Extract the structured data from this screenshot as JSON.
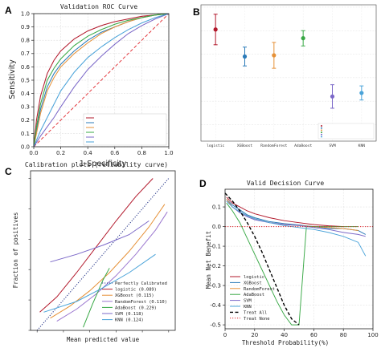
{
  "figure": {
    "panel_labels": [
      "A",
      "B",
      "C",
      "D"
    ]
  },
  "chart_data": [
    {
      "panel": "A",
      "type": "line",
      "title": "Validation ROC Curve",
      "xlabel": "1-Specificity",
      "ylabel": "Sensitivity",
      "xlim": [
        0,
        1
      ],
      "ylim": [
        0,
        1
      ],
      "xticks": [
        "0.0",
        "0.2",
        "0.4",
        "0.6",
        "0.8",
        "1.0"
      ],
      "yticks": [
        "0.0",
        "0.1",
        "0.2",
        "0.3",
        "0.4",
        "0.5",
        "0.6",
        "0.7",
        "0.8",
        "0.9",
        "1.0"
      ],
      "grid": true,
      "legend_position": "bottom-right",
      "reference": {
        "x": [
          0,
          1
        ],
        "y": [
          0,
          1
        ],
        "color": "#e0252b",
        "style": "dashed"
      },
      "series": [
        {
          "color": "#b2182b",
          "x": [
            0,
            0.02,
            0.05,
            0.1,
            0.15,
            0.2,
            0.3,
            0.4,
            0.5,
            0.6,
            0.7,
            0.8,
            0.9,
            1.0
          ],
          "y": [
            0,
            0.2,
            0.38,
            0.55,
            0.65,
            0.72,
            0.81,
            0.87,
            0.91,
            0.94,
            0.96,
            0.98,
            0.99,
            1.0
          ]
        },
        {
          "color": "#2b7bb9",
          "x": [
            0,
            0.02,
            0.05,
            0.1,
            0.15,
            0.2,
            0.3,
            0.4,
            0.5,
            0.6,
            0.7,
            0.8,
            0.9,
            1.0
          ],
          "y": [
            0,
            0.12,
            0.28,
            0.45,
            0.55,
            0.62,
            0.72,
            0.8,
            0.86,
            0.9,
            0.94,
            0.97,
            0.99,
            1.0
          ]
        },
        {
          "color": "#e69138",
          "x": [
            0,
            0.02,
            0.05,
            0.1,
            0.15,
            0.2,
            0.3,
            0.4,
            0.5,
            0.6,
            0.7,
            0.8,
            0.9,
            1.0
          ],
          "y": [
            0,
            0.1,
            0.25,
            0.42,
            0.52,
            0.6,
            0.7,
            0.78,
            0.85,
            0.9,
            0.94,
            0.97,
            0.99,
            1.0
          ]
        },
        {
          "color": "#38a845",
          "x": [
            0,
            0.02,
            0.05,
            0.1,
            0.15,
            0.2,
            0.3,
            0.4,
            0.5,
            0.6,
            0.7,
            0.8,
            0.9,
            1.0
          ],
          "y": [
            0,
            0.15,
            0.32,
            0.5,
            0.59,
            0.66,
            0.76,
            0.83,
            0.88,
            0.92,
            0.95,
            0.97,
            0.99,
            1.0
          ]
        },
        {
          "color": "#7b68c8",
          "x": [
            0,
            0.05,
            0.1,
            0.15,
            0.2,
            0.3,
            0.4,
            0.5,
            0.6,
            0.7,
            0.8,
            0.9,
            1.0
          ],
          "y": [
            0,
            0.08,
            0.15,
            0.22,
            0.3,
            0.45,
            0.58,
            0.68,
            0.77,
            0.85,
            0.91,
            0.96,
            1.0
          ]
        },
        {
          "color": "#4aa3d9",
          "x": [
            0,
            0.05,
            0.1,
            0.15,
            0.2,
            0.3,
            0.4,
            0.5,
            0.6,
            0.7,
            0.8,
            0.9,
            1.0
          ],
          "y": [
            0,
            0.12,
            0.22,
            0.32,
            0.42,
            0.56,
            0.67,
            0.75,
            0.82,
            0.88,
            0.93,
            0.97,
            1.0
          ]
        }
      ]
    },
    {
      "panel": "B",
      "type": "scatter",
      "title": "",
      "categories": [
        "logistic",
        "XGBoost",
        "RandomForest",
        "AdaBoost",
        "SVM",
        "KNN"
      ],
      "ylim": [
        0.38,
        0.96
      ],
      "grid": true,
      "legend_position": "bottom-right",
      "points": [
        {
          "category": "logistic",
          "value": 0.855,
          "low": 0.79,
          "high": 0.92,
          "color": "#b2182b"
        },
        {
          "category": "XGBoost",
          "value": 0.74,
          "low": 0.7,
          "high": 0.78,
          "color": "#2b7bb9"
        },
        {
          "category": "RandomForest",
          "value": 0.745,
          "low": 0.69,
          "high": 0.8,
          "color": "#e69138"
        },
        {
          "category": "AdaBoost",
          "value": 0.818,
          "low": 0.785,
          "high": 0.85,
          "color": "#38a845"
        },
        {
          "category": "SVM",
          "value": 0.57,
          "low": 0.52,
          "high": 0.62,
          "color": "#7b68c8"
        },
        {
          "category": "KNN",
          "value": 0.585,
          "low": 0.555,
          "high": 0.615,
          "color": "#4aa3d9"
        }
      ]
    },
    {
      "panel": "C",
      "type": "line",
      "title": "Calibration plots  (reliability curve)",
      "xlabel": "Mean predicted value",
      "ylabel": "Fraction of positives",
      "xlim": [
        -0.05,
        1.05
      ],
      "ylim": [
        0,
        1.05
      ],
      "grid": false,
      "legend_position": "bottom-right",
      "reference": {
        "name": "Perfectly Calibrated",
        "x": [
          0,
          1
        ],
        "y": [
          0,
          1
        ],
        "color": "#2b3a8c",
        "style": "dotted"
      },
      "series": [
        {
          "name": "logistic (0.089)",
          "color": "#b2182b",
          "x": [
            0.02,
            0.15,
            0.3,
            0.45,
            0.6,
            0.75,
            0.88
          ],
          "y": [
            0.12,
            0.22,
            0.38,
            0.55,
            0.72,
            0.88,
            1.0
          ]
        },
        {
          "name": "XGBoost (0.115)",
          "color": "#e69138",
          "x": [
            0.1,
            0.25,
            0.4,
            0.55,
            0.7,
            0.85,
            0.97
          ],
          "y": [
            0.08,
            0.16,
            0.26,
            0.38,
            0.52,
            0.68,
            0.83
          ]
        },
        {
          "name": "RandomForest (0.110)",
          "color": "#9b77cf",
          "x": [
            0.15,
            0.3,
            0.45,
            0.6,
            0.75,
            0.9,
            0.99
          ],
          "y": [
            0.06,
            0.14,
            0.24,
            0.36,
            0.5,
            0.66,
            0.78
          ]
        },
        {
          "name": "AdaBoost (0.229)",
          "color": "#38a845",
          "x": [
            0.35,
            0.42,
            0.5,
            0.55
          ],
          "y": [
            0.02,
            0.17,
            0.33,
            0.41
          ]
        },
        {
          "name": "SVM (0.118)",
          "color": "#7b68c8",
          "x": [
            0.1,
            0.3,
            0.5,
            0.7,
            0.85
          ],
          "y": [
            0.45,
            0.5,
            0.56,
            0.63,
            0.72
          ]
        },
        {
          "name": "KNN (0.124)",
          "color": "#4aa3d9",
          "x": [
            0.05,
            0.3,
            0.5,
            0.7,
            0.9
          ],
          "y": [
            0.12,
            0.19,
            0.28,
            0.38,
            0.5
          ]
        }
      ]
    },
    {
      "panel": "D",
      "type": "line",
      "title": "Valid Decision Curve",
      "xlabel": "Threshold Probability(%)",
      "ylabel": "Mean Net Benefit",
      "xlim": [
        0,
        100
      ],
      "ylim": [
        -0.5,
        0.2
      ],
      "xticks": [
        "0",
        "20",
        "40",
        "60",
        "80",
        "100"
      ],
      "yticks": [
        "0.1",
        "0.0",
        "-0.1",
        "-0.2",
        "-0.3",
        "-0.4",
        "-0.5"
      ],
      "grid": true,
      "legend_position": "bottom-left",
      "series": [
        {
          "name": "logistic",
          "color": "#b2182b",
          "x": [
            1,
            5,
            10,
            15,
            20,
            30,
            40,
            50,
            60,
            70,
            80
          ],
          "y": [
            0.15,
            0.12,
            0.1,
            0.08,
            0.065,
            0.045,
            0.03,
            0.02,
            0.01,
            0.004,
            0.0
          ]
        },
        {
          "name": "XGBoost",
          "color": "#2b7bb9",
          "x": [
            1,
            5,
            10,
            15,
            20,
            30,
            40,
            50,
            60,
            70,
            80,
            90,
            95
          ],
          "y": [
            0.14,
            0.11,
            0.085,
            0.06,
            0.045,
            0.025,
            0.015,
            0.008,
            0.0,
            -0.01,
            -0.01,
            -0.02,
            -0.04
          ]
        },
        {
          "name": "RandomForest",
          "color": "#e69138",
          "x": [
            1,
            5,
            10,
            15,
            20,
            30,
            40,
            50,
            60,
            70,
            80,
            90
          ],
          "y": [
            0.14,
            0.1,
            0.075,
            0.055,
            0.04,
            0.02,
            0.01,
            0.005,
            0.0,
            -0.005,
            -0.01,
            -0.02
          ]
        },
        {
          "name": "AdaBoost",
          "color": "#38a845",
          "x": [
            1,
            5,
            10,
            15,
            20,
            25,
            30,
            35,
            40,
            45,
            48,
            50,
            55,
            60,
            70,
            80,
            90
          ],
          "y": [
            0.12,
            0.08,
            0.02,
            -0.06,
            -0.14,
            -0.22,
            -0.3,
            -0.38,
            -0.45,
            -0.5,
            -0.5,
            -0.5,
            0.0,
            0.0,
            0.0,
            0.0,
            0.0
          ]
        },
        {
          "name": "SVM",
          "color": "#7b68c8",
          "x": [
            1,
            5,
            10,
            15,
            20,
            30,
            40,
            50,
            60,
            70,
            80,
            90,
            95
          ],
          "y": [
            0.13,
            0.1,
            0.07,
            0.05,
            0.035,
            0.02,
            0.01,
            0.005,
            -0.005,
            -0.015,
            -0.03,
            -0.04,
            -0.05
          ]
        },
        {
          "name": "KNN",
          "color": "#4aa3d9",
          "x": [
            1,
            5,
            10,
            15,
            20,
            30,
            40,
            50,
            60,
            70,
            80,
            90,
            95
          ],
          "y": [
            0.13,
            0.1,
            0.075,
            0.055,
            0.04,
            0.02,
            0.005,
            -0.005,
            -0.015,
            -0.03,
            -0.05,
            -0.08,
            -0.15
          ]
        },
        {
          "name": "Treat All",
          "color": "#000000",
          "style": "dashed",
          "x": [
            0,
            5,
            10,
            15,
            20,
            25,
            30,
            35,
            40,
            45,
            50
          ],
          "y": [
            0.17,
            0.13,
            0.08,
            0.02,
            -0.05,
            -0.13,
            -0.22,
            -0.31,
            -0.4,
            -0.47,
            -0.5
          ]
        },
        {
          "name": "Treat None",
          "color": "#e0252b",
          "style": "dotted",
          "x": [
            0,
            100
          ],
          "y": [
            0,
            0
          ]
        }
      ]
    }
  ]
}
